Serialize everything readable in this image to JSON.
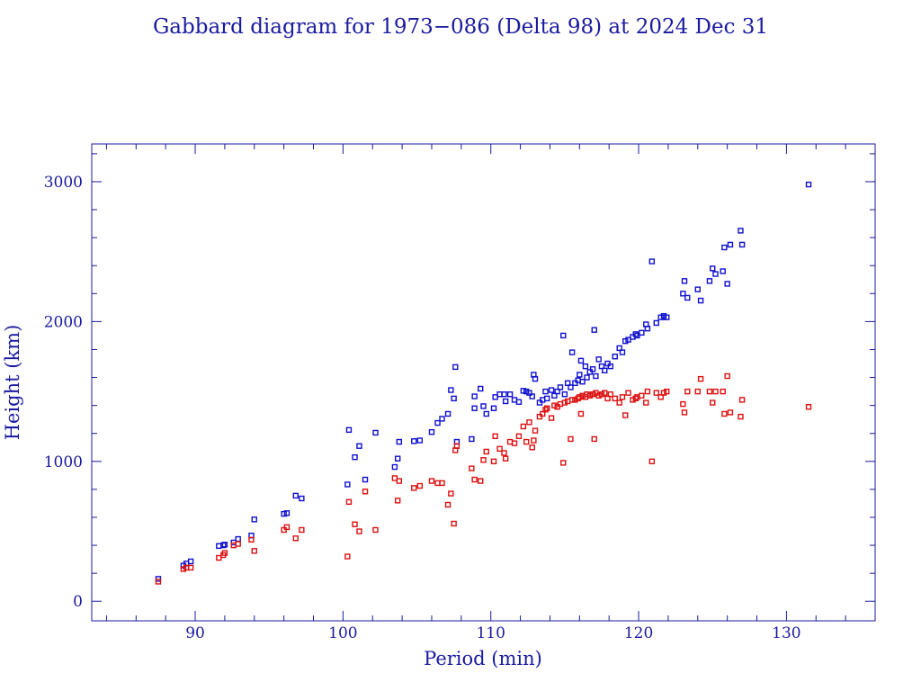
{
  "chart_data": {
    "type": "scatter",
    "title": "Gabbard diagram for 1973−086 (Delta 98) at 2024 Dec 31",
    "xlabel": "Period (min)",
    "ylabel": "Height (km)",
    "xlim": [
      83.0,
      136.0
    ],
    "ylim": [
      -140,
      3270
    ],
    "xticks": [
      90,
      100,
      110,
      120,
      130
    ],
    "yticks": [
      0,
      1000,
      2000,
      3000
    ],
    "grid": false,
    "colors": {
      "axis": "#1a1aa0",
      "apogee": "#1010d0",
      "perigee": "#dd1010"
    },
    "series": [
      {
        "role": "apogee",
        "points": [
          [
            87.5,
            160
          ],
          [
            89.2,
            255
          ],
          [
            89.4,
            270
          ],
          [
            89.7,
            285
          ],
          [
            91.6,
            395
          ],
          [
            91.9,
            400
          ],
          [
            92.0,
            405
          ],
          [
            92.6,
            420
          ],
          [
            92.9,
            445
          ],
          [
            93.8,
            470
          ],
          [
            94.0,
            585
          ],
          [
            96.0,
            625
          ],
          [
            96.2,
            630
          ],
          [
            96.8,
            755
          ],
          [
            97.2,
            735
          ],
          [
            100.3,
            835
          ],
          [
            100.4,
            1225
          ],
          [
            100.8,
            1030
          ],
          [
            101.1,
            1110
          ],
          [
            101.5,
            870
          ],
          [
            102.2,
            1205
          ],
          [
            103.5,
            960
          ],
          [
            103.7,
            1020
          ],
          [
            103.8,
            1140
          ],
          [
            104.8,
            1145
          ],
          [
            105.2,
            1150
          ],
          [
            106.0,
            1210
          ],
          [
            106.4,
            1275
          ],
          [
            106.7,
            1305
          ],
          [
            107.1,
            1340
          ],
          [
            107.3,
            1510
          ],
          [
            107.5,
            1450
          ],
          [
            107.6,
            1675
          ],
          [
            107.7,
            1140
          ],
          [
            108.7,
            1160
          ],
          [
            108.9,
            1380
          ],
          [
            108.9,
            1465
          ],
          [
            109.3,
            1520
          ],
          [
            109.5,
            1395
          ],
          [
            109.7,
            1340
          ],
          [
            110.2,
            1380
          ],
          [
            110.3,
            1460
          ],
          [
            110.6,
            1480
          ],
          [
            110.9,
            1480
          ],
          [
            111.0,
            1430
          ],
          [
            111.3,
            1480
          ],
          [
            111.6,
            1440
          ],
          [
            111.9,
            1425
          ],
          [
            112.2,
            1505
          ],
          [
            112.4,
            1500
          ],
          [
            112.6,
            1490
          ],
          [
            112.8,
            1465
          ],
          [
            112.9,
            1620
          ],
          [
            113.0,
            1590
          ],
          [
            113.3,
            1420
          ],
          [
            113.5,
            1440
          ],
          [
            113.7,
            1500
          ],
          [
            113.8,
            1450
          ],
          [
            114.1,
            1510
          ],
          [
            114.3,
            1470
          ],
          [
            114.5,
            1500
          ],
          [
            114.7,
            1530
          ],
          [
            114.9,
            1900
          ],
          [
            115.0,
            1480
          ],
          [
            115.2,
            1560
          ],
          [
            115.4,
            1530
          ],
          [
            115.5,
            1780
          ],
          [
            115.7,
            1560
          ],
          [
            115.9,
            1580
          ],
          [
            116.0,
            1620
          ],
          [
            116.1,
            1720
          ],
          [
            116.2,
            1570
          ],
          [
            116.4,
            1680
          ],
          [
            116.5,
            1600
          ],
          [
            116.7,
            1640
          ],
          [
            116.9,
            1660
          ],
          [
            117.0,
            1940
          ],
          [
            117.1,
            1610
          ],
          [
            117.3,
            1730
          ],
          [
            117.5,
            1680
          ],
          [
            117.7,
            1650
          ],
          [
            117.9,
            1700
          ],
          [
            118.1,
            1680
          ],
          [
            118.4,
            1750
          ],
          [
            118.7,
            1810
          ],
          [
            118.9,
            1780
          ],
          [
            119.1,
            1860
          ],
          [
            119.3,
            1870
          ],
          [
            119.6,
            1890
          ],
          [
            119.8,
            1910
          ],
          [
            119.9,
            1900
          ],
          [
            120.2,
            1920
          ],
          [
            120.5,
            1980
          ],
          [
            120.6,
            1950
          ],
          [
            120.9,
            2430
          ],
          [
            121.2,
            1990
          ],
          [
            121.5,
            2030
          ],
          [
            121.7,
            2040
          ],
          [
            121.9,
            2030
          ],
          [
            123.0,
            2200
          ],
          [
            123.1,
            2290
          ],
          [
            123.3,
            2170
          ],
          [
            124.0,
            2230
          ],
          [
            124.2,
            2150
          ],
          [
            124.8,
            2290
          ],
          [
            125.0,
            2380
          ],
          [
            125.2,
            2340
          ],
          [
            125.7,
            2360
          ],
          [
            125.8,
            2530
          ],
          [
            126.0,
            2270
          ],
          [
            126.2,
            2550
          ],
          [
            126.9,
            2650
          ],
          [
            127.0,
            2550
          ],
          [
            131.5,
            2980
          ]
        ]
      },
      {
        "role": "perigee",
        "points": [
          [
            87.5,
            140
          ],
          [
            89.2,
            230
          ],
          [
            89.4,
            240
          ],
          [
            89.7,
            240
          ],
          [
            91.6,
            310
          ],
          [
            91.9,
            330
          ],
          [
            92.0,
            345
          ],
          [
            92.6,
            400
          ],
          [
            92.9,
            410
          ],
          [
            93.8,
            440
          ],
          [
            94.0,
            360
          ],
          [
            96.0,
            510
          ],
          [
            96.2,
            530
          ],
          [
            96.8,
            450
          ],
          [
            97.2,
            510
          ],
          [
            100.3,
            320
          ],
          [
            100.4,
            710
          ],
          [
            100.8,
            550
          ],
          [
            101.1,
            500
          ],
          [
            101.5,
            785
          ],
          [
            102.2,
            510
          ],
          [
            103.5,
            880
          ],
          [
            103.7,
            720
          ],
          [
            103.8,
            860
          ],
          [
            104.8,
            810
          ],
          [
            105.2,
            825
          ],
          [
            106.0,
            860
          ],
          [
            106.4,
            845
          ],
          [
            106.7,
            845
          ],
          [
            107.1,
            690
          ],
          [
            107.3,
            770
          ],
          [
            107.5,
            555
          ],
          [
            107.6,
            1080
          ],
          [
            107.7,
            1110
          ],
          [
            108.7,
            950
          ],
          [
            108.9,
            870
          ],
          [
            109.3,
            860
          ],
          [
            109.5,
            1010
          ],
          [
            109.7,
            1070
          ],
          [
            110.2,
            1000
          ],
          [
            110.3,
            1180
          ],
          [
            110.6,
            1090
          ],
          [
            110.9,
            1060
          ],
          [
            111.0,
            1020
          ],
          [
            111.3,
            1140
          ],
          [
            111.6,
            1130
          ],
          [
            111.9,
            1180
          ],
          [
            112.2,
            1250
          ],
          [
            112.4,
            1140
          ],
          [
            112.6,
            1280
          ],
          [
            112.8,
            1100
          ],
          [
            112.9,
            1150
          ],
          [
            113.0,
            1220
          ],
          [
            113.3,
            1320
          ],
          [
            113.5,
            1340
          ],
          [
            113.7,
            1370
          ],
          [
            113.8,
            1380
          ],
          [
            114.1,
            1310
          ],
          [
            114.3,
            1400
          ],
          [
            114.5,
            1390
          ],
          [
            114.7,
            1410
          ],
          [
            114.9,
            990
          ],
          [
            115.0,
            1420
          ],
          [
            115.2,
            1430
          ],
          [
            115.4,
            1160
          ],
          [
            115.5,
            1440
          ],
          [
            115.7,
            1440
          ],
          [
            115.9,
            1450
          ],
          [
            116.0,
            1460
          ],
          [
            116.1,
            1340
          ],
          [
            116.2,
            1470
          ],
          [
            116.4,
            1460
          ],
          [
            116.5,
            1480
          ],
          [
            116.7,
            1470
          ],
          [
            116.9,
            1480
          ],
          [
            117.0,
            1160
          ],
          [
            117.1,
            1490
          ],
          [
            117.3,
            1470
          ],
          [
            117.5,
            1480
          ],
          [
            117.7,
            1490
          ],
          [
            117.9,
            1450
          ],
          [
            118.1,
            1480
          ],
          [
            118.4,
            1450
          ],
          [
            118.7,
            1420
          ],
          [
            118.9,
            1460
          ],
          [
            119.1,
            1330
          ],
          [
            119.3,
            1490
          ],
          [
            119.6,
            1440
          ],
          [
            119.8,
            1450
          ],
          [
            119.9,
            1460
          ],
          [
            120.2,
            1470
          ],
          [
            120.5,
            1420
          ],
          [
            120.6,
            1500
          ],
          [
            120.9,
            1000
          ],
          [
            121.2,
            1490
          ],
          [
            121.5,
            1460
          ],
          [
            121.7,
            1490
          ],
          [
            121.9,
            1500
          ],
          [
            123.0,
            1410
          ],
          [
            123.1,
            1350
          ],
          [
            123.3,
            1500
          ],
          [
            124.0,
            1500
          ],
          [
            124.2,
            1590
          ],
          [
            124.8,
            1500
          ],
          [
            125.0,
            1420
          ],
          [
            125.2,
            1500
          ],
          [
            125.7,
            1500
          ],
          [
            125.8,
            1340
          ],
          [
            126.0,
            1610
          ],
          [
            126.2,
            1350
          ],
          [
            126.9,
            1320
          ],
          [
            127.0,
            1440
          ],
          [
            131.5,
            1390
          ]
        ]
      }
    ]
  }
}
